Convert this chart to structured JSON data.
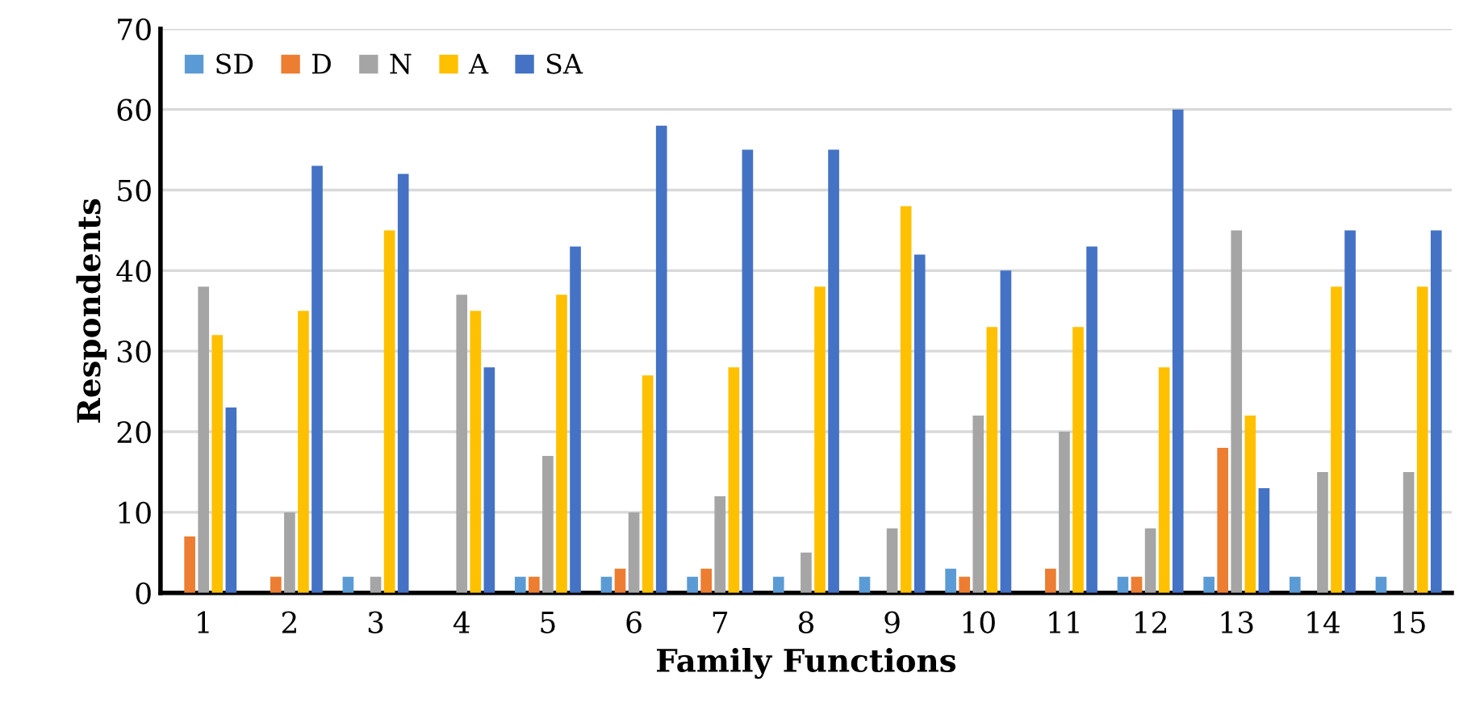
{
  "chart_data": {
    "type": "bar",
    "xlabel": "Family Functions",
    "ylabel": "Respondents",
    "categories": [
      "1",
      "2",
      "3",
      "4",
      "5",
      "6",
      "7",
      "8",
      "9",
      "10",
      "11",
      "12",
      "13",
      "14",
      "15"
    ],
    "series": [
      {
        "name": "SD",
        "color": "#5b9bd5",
        "values": [
          0,
          0,
          2,
          0,
          2,
          2,
          2,
          2,
          2,
          3,
          0,
          2,
          2,
          2,
          2
        ]
      },
      {
        "name": "D",
        "color": "#ed7d31",
        "values": [
          7,
          2,
          0,
          0,
          2,
          3,
          3,
          0,
          0,
          2,
          3,
          2,
          18,
          0,
          0
        ]
      },
      {
        "name": "N",
        "color": "#a5a5a5",
        "values": [
          38,
          10,
          2,
          37,
          17,
          10,
          12,
          5,
          8,
          22,
          20,
          8,
          45,
          15,
          15
        ]
      },
      {
        "name": "A",
        "color": "#ffc000",
        "values": [
          32,
          35,
          45,
          35,
          37,
          27,
          28,
          38,
          48,
          33,
          33,
          28,
          22,
          38,
          38
        ]
      },
      {
        "name": "SA",
        "color": "#4472c4",
        "values": [
          23,
          53,
          52,
          28,
          43,
          58,
          55,
          55,
          42,
          40,
          43,
          60,
          13,
          45,
          45
        ]
      }
    ],
    "ylim": [
      0,
      70
    ],
    "yticks": [
      0,
      10,
      20,
      30,
      40,
      50,
      60,
      70
    ],
    "grid": "y",
    "legend": "top left"
  }
}
